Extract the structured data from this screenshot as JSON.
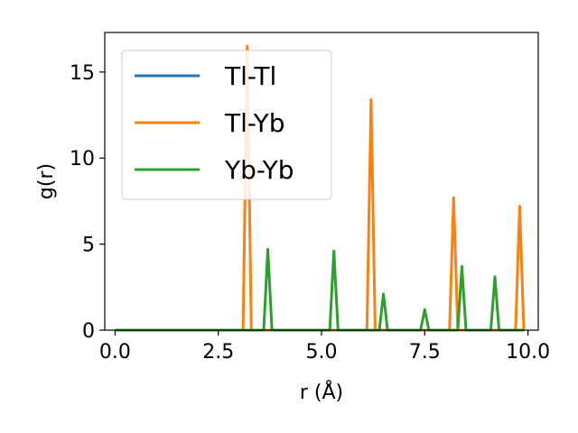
{
  "chart_data": {
    "type": "line",
    "xlabel": "r (Å)",
    "ylabel": "g(r)",
    "xlim": [
      -0.25,
      10.25
    ],
    "ylim": [
      0,
      17.3
    ],
    "xticks": [
      0.0,
      2.5,
      5.0,
      7.5,
      10.0
    ],
    "xtick_labels": [
      "0.0",
      "2.5",
      "5.0",
      "7.5",
      "10.0"
    ],
    "yticks": [
      0,
      5,
      10,
      15
    ],
    "ytick_labels": [
      "0",
      "5",
      "10",
      "15"
    ],
    "grid": false,
    "legend": {
      "placement": "top-left"
    },
    "series": [
      {
        "name": "Tl-Tl",
        "color": "#1f77b4",
        "x": [
          0.0,
          9.9
        ],
        "y": [
          0,
          0
        ]
      },
      {
        "name": "Tl-Yb",
        "color": "#ff7f0e",
        "x": [
          0.0,
          3.1,
          3.2,
          3.3,
          6.1,
          6.2,
          6.3,
          8.1,
          8.2,
          8.3,
          9.7,
          9.8,
          9.9
        ],
        "y": [
          0,
          0,
          16.5,
          0,
          0,
          13.4,
          0,
          0,
          7.7,
          0,
          0,
          7.2,
          0
        ]
      },
      {
        "name": "Yb-Yb",
        "color": "#2ca02c",
        "x": [
          0.0,
          3.6,
          3.7,
          3.8,
          5.2,
          5.3,
          5.4,
          6.4,
          6.5,
          6.6,
          7.4,
          7.5,
          7.6,
          8.3,
          8.4,
          8.5,
          9.1,
          9.2,
          9.3,
          9.9
        ],
        "y": [
          0,
          0,
          4.7,
          0,
          0,
          4.6,
          0,
          0,
          2.1,
          0,
          0,
          1.2,
          0,
          0,
          3.7,
          0,
          0,
          3.1,
          0,
          0
        ]
      }
    ]
  }
}
